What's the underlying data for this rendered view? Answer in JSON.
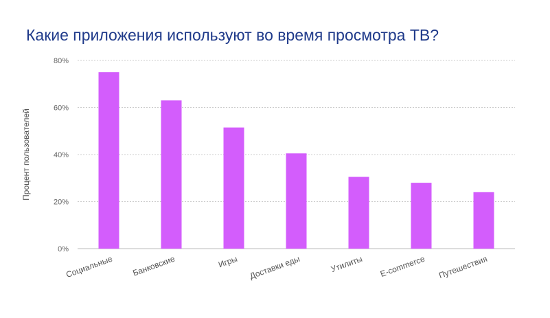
{
  "chart_data": {
    "type": "bar",
    "title": "Какие приложения используют во время просмотра ТВ?",
    "xlabel": "",
    "ylabel": "Процент пользователей",
    "categories": [
      "Социальные",
      "Банковские",
      "Игры",
      "Доставки еды",
      "Утилиты",
      "E-commerce",
      "Путешествия"
    ],
    "values": [
      75,
      63,
      51.5,
      40.5,
      30.5,
      28,
      24
    ],
    "ylim": [
      0,
      80
    ],
    "yticks": [
      0,
      20,
      40,
      60,
      80
    ],
    "ytick_labels": [
      "0%",
      "20%",
      "40%",
      "60%",
      "80%"
    ],
    "grid": true,
    "colors": {
      "bar": "#d35dfc",
      "grid": "#cccccc",
      "baseline": "#bbbbbb",
      "title": "#1f3a8a"
    }
  }
}
